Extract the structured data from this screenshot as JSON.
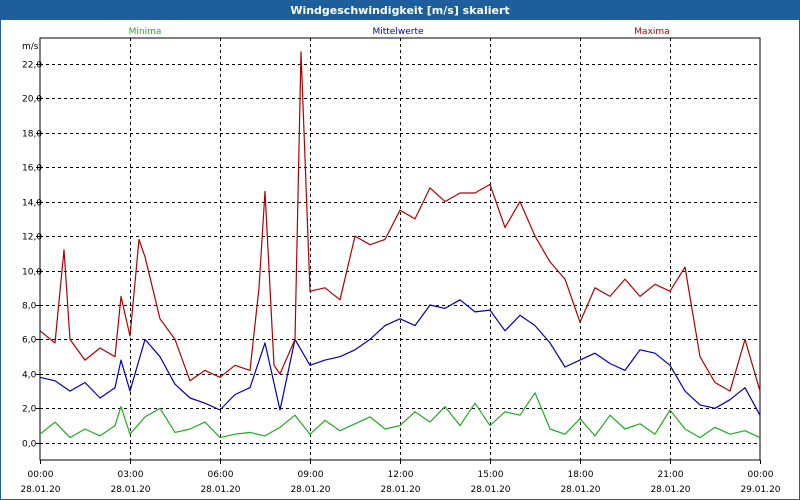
{
  "window": {
    "title": "Windgeschwindigkeit [m/s] skaliert"
  },
  "chart_data": {
    "type": "line",
    "ylabel": "m/s",
    "ylim": [
      -1.0,
      23.5
    ],
    "yticks": [
      0.0,
      2.0,
      4.0,
      6.0,
      8.0,
      10.0,
      12.0,
      14.0,
      16.0,
      18.0,
      20.0,
      22.0
    ],
    "ytick_labels": [
      "0,0",
      "2,0",
      "4,0",
      "6,0",
      "8,0",
      "10,0",
      "12,0",
      "14,0",
      "16,0",
      "18,0",
      "20,0",
      "22,0"
    ],
    "xlim": [
      0,
      24
    ],
    "xticks": [
      0,
      3,
      6,
      9,
      12,
      15,
      18,
      21,
      24
    ],
    "xtick_times": [
      "00:00",
      "03:00",
      "06:00",
      "09:00",
      "12:00",
      "15:00",
      "18:00",
      "21:00",
      "00:00"
    ],
    "xtick_dates": [
      "28.01.20",
      "28.01.20",
      "28.01.20",
      "28.01.20",
      "28.01.20",
      "28.01.20",
      "28.01.20",
      "28.01.20",
      "29.01.20"
    ],
    "grid": true,
    "legend_position": "top",
    "colors": {
      "min": "#22aa22",
      "mean": "#0000c0",
      "max": "#b00000"
    },
    "series": [
      {
        "name": "Minima",
        "color": "#22aa22",
        "x": [
          0.0,
          0.5,
          1.0,
          1.5,
          2.0,
          2.5,
          2.7,
          3.0,
          3.5,
          4.0,
          4.5,
          5.0,
          5.5,
          6.0,
          6.5,
          7.0,
          7.5,
          8.0,
          8.5,
          9.0,
          9.5,
          10.0,
          10.5,
          11.0,
          11.5,
          12.0,
          12.5,
          13.0,
          13.5,
          14.0,
          14.5,
          15.0,
          15.5,
          16.0,
          16.5,
          17.0,
          17.5,
          18.0,
          18.5,
          19.0,
          19.5,
          20.0,
          20.5,
          21.0,
          21.5,
          22.0,
          22.5,
          23.0,
          23.5,
          24.0
        ],
        "values": [
          0.5,
          1.2,
          0.3,
          0.8,
          0.4,
          1.0,
          2.1,
          0.5,
          1.5,
          2.0,
          0.6,
          0.8,
          1.2,
          0.3,
          0.5,
          0.6,
          0.4,
          0.9,
          1.6,
          0.5,
          1.3,
          0.7,
          1.1,
          1.5,
          0.8,
          1.0,
          1.8,
          1.2,
          2.1,
          1.0,
          2.3,
          1.0,
          1.8,
          1.6,
          2.9,
          0.8,
          0.5,
          1.4,
          0.4,
          1.6,
          0.8,
          1.1,
          0.5,
          1.9,
          0.8,
          0.3,
          0.9,
          0.5,
          0.7,
          0.3
        ]
      },
      {
        "name": "Mittelwerte",
        "color": "#0000c0",
        "x": [
          0.0,
          0.5,
          1.0,
          1.5,
          2.0,
          2.5,
          2.7,
          3.0,
          3.5,
          4.0,
          4.5,
          5.0,
          5.5,
          6.0,
          6.5,
          7.0,
          7.5,
          8.0,
          8.5,
          9.0,
          9.5,
          10.0,
          10.5,
          11.0,
          11.5,
          12.0,
          12.5,
          13.0,
          13.5,
          14.0,
          14.5,
          15.0,
          15.5,
          16.0,
          16.5,
          17.0,
          17.5,
          18.0,
          18.5,
          19.0,
          19.5,
          20.0,
          20.5,
          21.0,
          21.5,
          22.0,
          22.5,
          23.0,
          23.5,
          24.0
        ],
        "values": [
          3.8,
          3.6,
          3.0,
          3.5,
          2.6,
          3.2,
          4.8,
          3.0,
          6.0,
          5.0,
          3.4,
          2.6,
          2.3,
          1.9,
          2.8,
          3.2,
          5.8,
          1.9,
          6.0,
          4.5,
          4.8,
          5.0,
          5.4,
          6.0,
          6.8,
          7.2,
          6.8,
          8.0,
          7.8,
          8.3,
          7.6,
          7.7,
          6.5,
          7.4,
          6.8,
          5.8,
          4.4,
          4.8,
          5.2,
          4.6,
          4.2,
          5.4,
          5.2,
          4.5,
          3.0,
          2.2,
          2.0,
          2.5,
          3.2,
          1.6
        ]
      },
      {
        "name": "Maxima",
        "color": "#b00000",
        "x": [
          0.0,
          0.5,
          0.8,
          1.0,
          1.5,
          2.0,
          2.5,
          2.7,
          3.0,
          3.3,
          3.5,
          4.0,
          4.5,
          5.0,
          5.5,
          6.0,
          6.5,
          7.0,
          7.3,
          7.5,
          7.8,
          8.0,
          8.5,
          8.7,
          9.0,
          9.5,
          10.0,
          10.5,
          11.0,
          11.5,
          12.0,
          12.5,
          13.0,
          13.5,
          14.0,
          14.5,
          15.0,
          15.5,
          16.0,
          16.5,
          17.0,
          17.5,
          18.0,
          18.5,
          19.0,
          19.5,
          20.0,
          20.5,
          21.0,
          21.5,
          22.0,
          22.5,
          23.0,
          23.5,
          24.0
        ],
        "values": [
          6.5,
          5.8,
          11.2,
          6.0,
          4.8,
          5.5,
          5.0,
          8.5,
          6.2,
          11.8,
          10.8,
          7.2,
          6.0,
          3.6,
          4.2,
          3.8,
          4.5,
          4.2,
          9.0,
          14.6,
          4.5,
          4.0,
          6.0,
          22.7,
          8.8,
          9.0,
          8.3,
          12.0,
          11.5,
          11.8,
          13.5,
          13.0,
          14.8,
          14.0,
          14.5,
          14.5,
          15.0,
          12.5,
          14.0,
          12.0,
          10.5,
          9.5,
          7.0,
          9.0,
          8.5,
          9.5,
          8.5,
          9.2,
          8.8,
          10.2,
          5.0,
          3.5,
          3.0,
          6.0,
          3.0
        ]
      }
    ]
  }
}
